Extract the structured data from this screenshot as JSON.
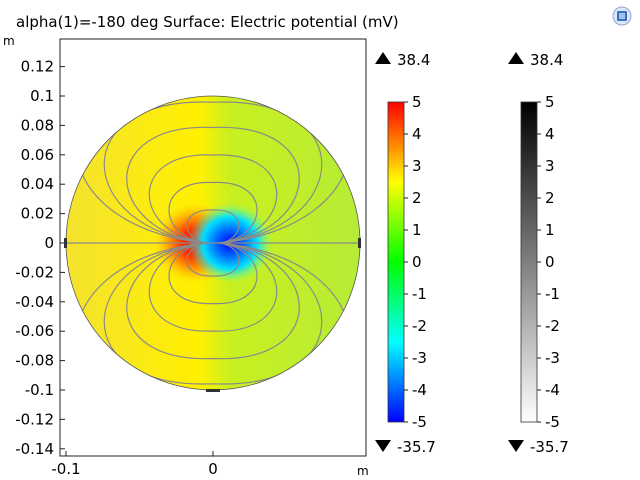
{
  "title": "alpha(1)=-180 deg  Surface: Electric potential (mV)",
  "units": {
    "y": "m",
    "x": "m"
  },
  "icon": "comsol-logo-icon",
  "chart_data": {
    "type": "heatmap",
    "title": "alpha(1)=-180 deg  Surface: Electric potential (mV)",
    "xlabel": "",
    "ylabel": "",
    "x_ticks": [
      "-0.1",
      "0"
    ],
    "y_ticks": [
      "0.12",
      "0.1",
      "0.08",
      "0.06",
      "0.04",
      "0.02",
      "0",
      "-0.02",
      "-0.04",
      "-0.06",
      "-0.08",
      "-0.1",
      "-0.12",
      "-0.14"
    ],
    "xlim": [
      -0.103,
      0.105
    ],
    "ylim": [
      -0.143,
      0.138
    ],
    "domain": {
      "shape": "disk",
      "center": [
        0,
        0
      ],
      "radius": 0.1
    },
    "dipole": {
      "center": [
        0,
        0
      ],
      "positive_side": "left",
      "negative_side": "right"
    },
    "color_range": {
      "max_label": "38.4",
      "min_label": "-35.7"
    },
    "colorbars": [
      {
        "name": "rainbow",
        "colors": [
          "#0000ff",
          "#00ffff",
          "#00ff00",
          "#ffff00",
          "#ff0000"
        ],
        "ticks": [
          "5",
          "4",
          "3",
          "2",
          "1",
          "0",
          "-1",
          "-2",
          "-3",
          "-4",
          "-5"
        ],
        "range": [
          -5,
          5
        ]
      },
      {
        "name": "grayscale",
        "colors": [
          "#ffffff",
          "#000000"
        ],
        "ticks": [
          "5",
          "4",
          "3",
          "2",
          "1",
          "0",
          "-1",
          "-2",
          "-3",
          "-4",
          "-5"
        ],
        "range": [
          -5,
          5
        ]
      }
    ]
  }
}
